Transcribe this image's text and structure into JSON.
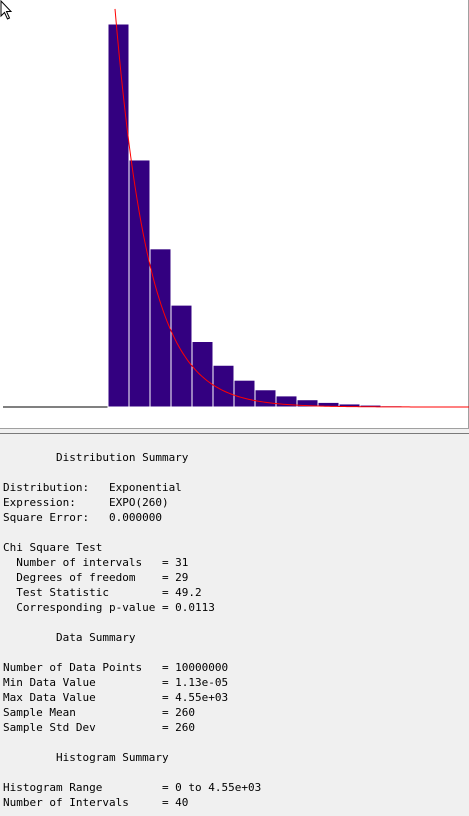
{
  "chart_data": {
    "type": "bar",
    "title": "",
    "xlabel": "",
    "ylabel": "",
    "bar_color": "#330080",
    "curve_color": "#ff0000",
    "series": [
      {
        "type": "bar",
        "values": [
          0,
          0,
          0,
          0,
          0,
          1.0,
          0.645,
          0.413,
          0.266,
          0.171,
          0.109,
          0.07,
          0.045,
          0.029,
          0.019,
          0.012,
          0.008,
          0.005,
          0.003,
          0.002,
          0.001,
          0.0007
        ]
      },
      {
        "type": "line",
        "function": "exponential decay fit (EXPO(260))"
      }
    ]
  },
  "report": {
    "lines": [
      "        Distribution Summary",
      "",
      "Distribution:   Exponential",
      "Expression:     EXPO(260)",
      "Square Error:   0.000000",
      "",
      "Chi Square Test",
      "  Number of intervals   = 31",
      "  Degrees of freedom    = 29",
      "  Test Statistic        = 49.2",
      "  Corresponding p-value = 0.0113",
      "",
      "        Data Summary",
      "",
      "Number of Data Points   = 10000000",
      "Min Data Value          = 1.13e-05",
      "Max Data Value          = 4.55e+03",
      "Sample Mean             = 260",
      "Sample Std Dev          = 260",
      "",
      "        Histogram Summary",
      "",
      "Histogram Range         = 0 to 4.55e+03",
      "Number of Intervals     = 40"
    ]
  }
}
